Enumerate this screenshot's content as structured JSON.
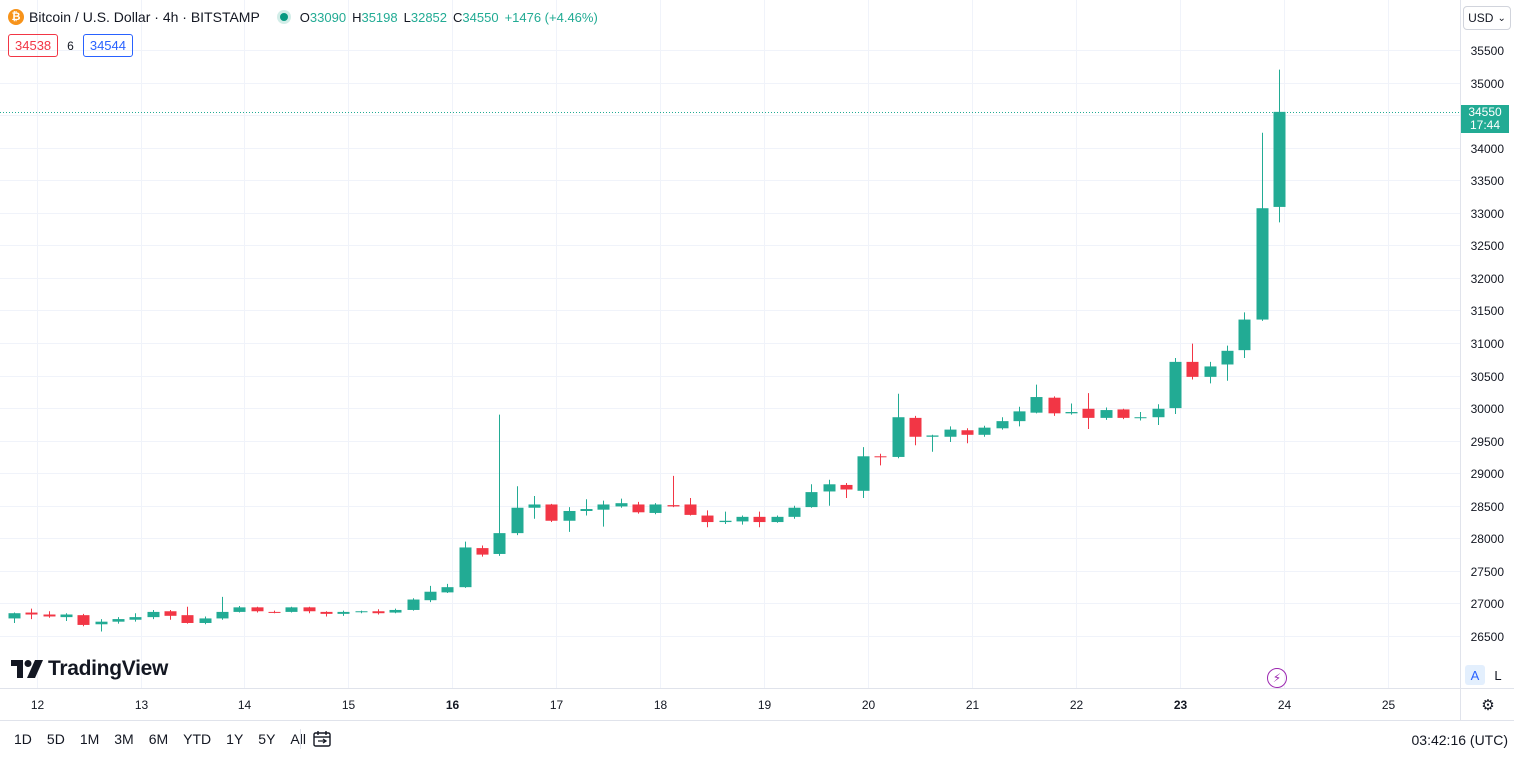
{
  "legend": {
    "coin_icon": "bitcoin-icon",
    "title": "Bitcoin / U.S. Dollar · 4h · BITSTAMP",
    "ohlc": {
      "o_label": "O",
      "o": "33090",
      "h_label": "H",
      "h": "35198",
      "l_label": "L",
      "l": "32852",
      "c_label": "C",
      "c": "34550",
      "change": "+1476 (+4.46%)"
    }
  },
  "trade": {
    "sell": "34538",
    "spread": "6",
    "buy": "34544"
  },
  "currency_button": "USD",
  "price_tag": {
    "price": "34550",
    "countdown": "17:44"
  },
  "logo": "TradingView",
  "mode_buttons": {
    "auto": "A",
    "log": "L"
  },
  "ranges": [
    "1D",
    "5D",
    "1M",
    "3M",
    "6M",
    "YTD",
    "1Y",
    "5Y",
    "All"
  ],
  "clock": "03:42:16 (UTC)",
  "colors": {
    "up": "#22ab94",
    "down": "#f23645",
    "grid": "#f0f3fa",
    "axis_text": "#131722"
  },
  "chart_data": {
    "type": "candlestick",
    "symbol": "Bitcoin / U.S. Dollar",
    "interval": "4h",
    "exchange": "BITSTAMP",
    "ylim": [
      26100,
      35900
    ],
    "xlim": [
      -0.6,
      87
    ],
    "yticks": [
      26500,
      27000,
      27500,
      28000,
      28500,
      29000,
      29500,
      30000,
      30500,
      31000,
      31500,
      32000,
      32500,
      33000,
      33500,
      34000,
      34500,
      35000,
      35500
    ],
    "ytick_labels": [
      "26500",
      "27000",
      "27500",
      "28000",
      "28500",
      "29000",
      "29500",
      "30000",
      "30500",
      "31000",
      "31500",
      "32000",
      "32500",
      "33000",
      "33500",
      "34000",
      "34500",
      "35000",
      "35500"
    ],
    "xticks": [
      {
        "i": 1.3,
        "label": "12",
        "bold": false
      },
      {
        "i": 7.3,
        "label": "13",
        "bold": false
      },
      {
        "i": 13.3,
        "label": "14",
        "bold": false
      },
      {
        "i": 19.3,
        "label": "15",
        "bold": false
      },
      {
        "i": 25.3,
        "label": "16",
        "bold": true
      },
      {
        "i": 31.3,
        "label": "17",
        "bold": false
      },
      {
        "i": 37.3,
        "label": "18",
        "bold": false
      },
      {
        "i": 43.3,
        "label": "19",
        "bold": false
      },
      {
        "i": 49.3,
        "label": "20",
        "bold": false
      },
      {
        "i": 55.3,
        "label": "21",
        "bold": false
      },
      {
        "i": 61.3,
        "label": "22",
        "bold": false
      },
      {
        "i": 67.3,
        "label": "23",
        "bold": true
      },
      {
        "i": 73.3,
        "label": "24",
        "bold": false
      },
      {
        "i": 79.3,
        "label": "25",
        "bold": false
      }
    ],
    "last_price": 34550,
    "candles": [
      [
        26770,
        26860,
        26700,
        26850
      ],
      [
        26860,
        26920,
        26760,
        26830
      ],
      [
        26830,
        26880,
        26780,
        26800
      ],
      [
        26790,
        26850,
        26730,
        26830
      ],
      [
        26820,
        26840,
        26650,
        26670
      ],
      [
        26680,
        26760,
        26570,
        26720
      ],
      [
        26720,
        26790,
        26690,
        26760
      ],
      [
        26750,
        26850,
        26720,
        26790
      ],
      [
        26790,
        26900,
        26760,
        26870
      ],
      [
        26880,
        26900,
        26750,
        26810
      ],
      [
        26820,
        26950,
        26690,
        26700
      ],
      [
        26700,
        26800,
        26680,
        26770
      ],
      [
        26770,
        27100,
        26750,
        26870
      ],
      [
        26870,
        26960,
        26860,
        26940
      ],
      [
        26940,
        26950,
        26860,
        26880
      ],
      [
        26870,
        26890,
        26850,
        26860
      ],
      [
        26870,
        26950,
        26860,
        26940
      ],
      [
        26940,
        26950,
        26850,
        26880
      ],
      [
        26870,
        26880,
        26800,
        26840
      ],
      [
        26840,
        26890,
        26810,
        26870
      ],
      [
        26870,
        26890,
        26850,
        26880
      ],
      [
        26880,
        26910,
        26830,
        26850
      ],
      [
        26860,
        26920,
        26850,
        26900
      ],
      [
        26900,
        27080,
        26890,
        27060
      ],
      [
        27050,
        27270,
        27020,
        27180
      ],
      [
        27170,
        27300,
        27160,
        27250
      ],
      [
        27250,
        27950,
        27240,
        27860
      ],
      [
        27850,
        27890,
        27720,
        27750
      ],
      [
        27760,
        29900,
        27730,
        28080
      ],
      [
        28080,
        28800,
        28050,
        28470
      ],
      [
        28470,
        28650,
        28300,
        28520
      ],
      [
        28520,
        28530,
        28250,
        28270
      ],
      [
        28270,
        28480,
        28100,
        28420
      ],
      [
        28420,
        28600,
        28350,
        28450
      ],
      [
        28440,
        28580,
        28180,
        28520
      ],
      [
        28490,
        28610,
        28470,
        28540
      ],
      [
        28520,
        28560,
        28380,
        28400
      ],
      [
        28390,
        28540,
        28370,
        28520
      ],
      [
        28510,
        28960,
        28480,
        28490
      ],
      [
        28520,
        28620,
        28350,
        28360
      ],
      [
        28350,
        28430,
        28170,
        28250
      ],
      [
        28250,
        28410,
        28220,
        28270
      ],
      [
        28260,
        28350,
        28210,
        28330
      ],
      [
        28330,
        28410,
        28170,
        28250
      ],
      [
        28250,
        28350,
        28240,
        28330
      ],
      [
        28330,
        28500,
        28300,
        28470
      ],
      [
        28480,
        28830,
        28470,
        28710
      ],
      [
        28720,
        28900,
        28500,
        28830
      ],
      [
        28820,
        28850,
        28620,
        28750
      ],
      [
        28730,
        29400,
        28620,
        29260
      ],
      [
        29260,
        29300,
        29120,
        29250
      ],
      [
        29250,
        30220,
        29230,
        29860
      ],
      [
        29850,
        29880,
        29430,
        29560
      ],
      [
        29560,
        29590,
        29330,
        29580
      ],
      [
        29560,
        29720,
        29480,
        29670
      ],
      [
        29660,
        29690,
        29460,
        29590
      ],
      [
        29590,
        29730,
        29560,
        29700
      ],
      [
        29690,
        29860,
        29670,
        29800
      ],
      [
        29800,
        30020,
        29720,
        29950
      ],
      [
        29930,
        30360,
        29920,
        30170
      ],
      [
        30160,
        30180,
        29880,
        29920
      ],
      [
        29920,
        30070,
        29900,
        29940
      ],
      [
        29990,
        30230,
        29680,
        29850
      ],
      [
        29850,
        30010,
        29820,
        29970
      ],
      [
        29980,
        29990,
        29830,
        29850
      ],
      [
        29860,
        29940,
        29810,
        29860
      ],
      [
        29860,
        30060,
        29740,
        29990
      ],
      [
        30000,
        30770,
        29910,
        30710
      ],
      [
        30710,
        30990,
        30440,
        30480
      ],
      [
        30480,
        30710,
        30380,
        30640
      ],
      [
        30670,
        30960,
        30420,
        30880
      ],
      [
        30890,
        31470,
        30770,
        31360
      ],
      [
        31360,
        34230,
        31340,
        33070
      ],
      [
        33090,
        35198,
        32852,
        34550
      ]
    ]
  }
}
